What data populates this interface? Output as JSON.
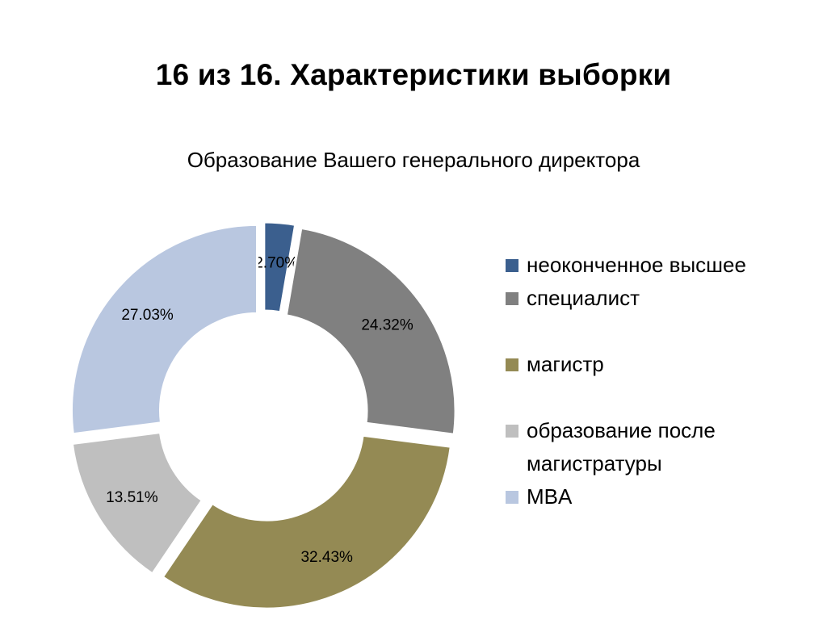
{
  "slide": {
    "title": "16 из 16. Характеристики выборки"
  },
  "chart_data": {
    "type": "pie",
    "donut": true,
    "title": "Образование Вашего генерального директора",
    "categories": [
      "неоконченное высшее",
      "специалист",
      "магистр",
      "образование после магистратуры",
      "MBA"
    ],
    "values": [
      2.7,
      24.32,
      32.43,
      13.51,
      27.03
    ],
    "data_labels": [
      "2.70%",
      "24.32%",
      "32.43%",
      "13.51%",
      "27.03%"
    ],
    "colors": [
      "#3b5f8e",
      "#808080",
      "#948a54",
      "#bfbfbf",
      "#b9c7e0"
    ],
    "legend_position": "right"
  },
  "legend": {
    "items": [
      {
        "label": "неоконченное высшее",
        "color": "#3b5f8e"
      },
      {
        "label": "специалист",
        "color": "#808080"
      },
      {
        "label": "магистр",
        "color": "#948a54"
      },
      {
        "label": "образование после магистратуры",
        "color": "#bfbfbf"
      },
      {
        "label": "MBA",
        "color": "#b9c7e0"
      }
    ]
  }
}
